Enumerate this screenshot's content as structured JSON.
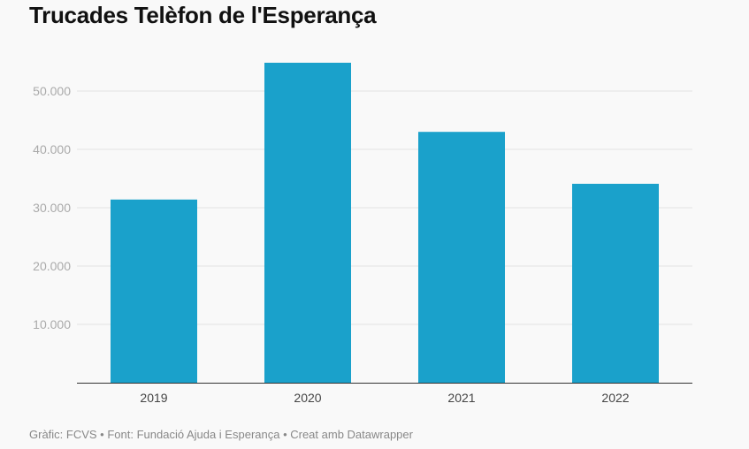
{
  "title": "Trucades Telèfon de l'Esperança",
  "footer": "Gràfic: FCVS • Font: Fundació Ajuda i Esperança • Creat amb Datawrapper",
  "chart_data": {
    "type": "bar",
    "title": "Trucades Telèfon de l'Esperança",
    "categories": [
      "2019",
      "2020",
      "2021",
      "2022"
    ],
    "values": [
      31400,
      54850,
      43000,
      34100
    ],
    "ylim": [
      0,
      55000
    ],
    "yticks": [
      10000,
      20000,
      30000,
      40000,
      50000
    ],
    "ytick_labels": [
      "10.000",
      "20.000",
      "30.000",
      "40.000",
      "50.000"
    ],
    "grid": true,
    "bar_color": "#1aa1cb",
    "xlabel": "",
    "ylabel": ""
  }
}
